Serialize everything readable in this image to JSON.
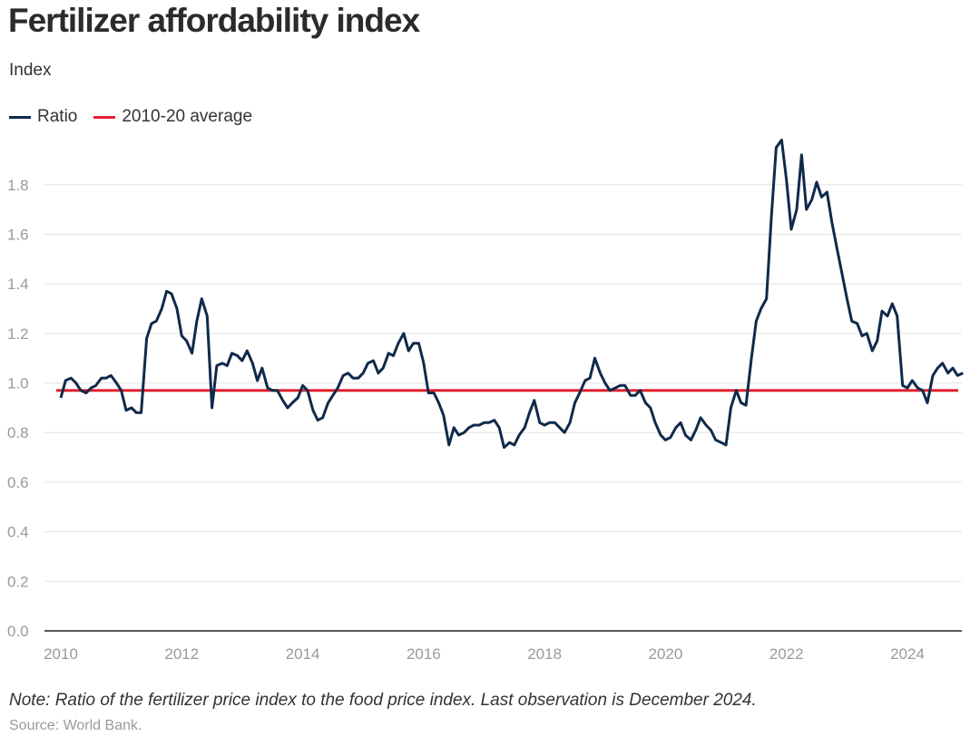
{
  "chart_data": {
    "type": "line",
    "title": "Fertilizer affordability index",
    "ylabel": "Index",
    "xlabel": "",
    "ylim": [
      0,
      2.0
    ],
    "xlim": [
      2010.0,
      2025.1
    ],
    "y_ticks": [
      "0.0",
      "0.2",
      "0.4",
      "0.6",
      "0.8",
      "1.0",
      "1.2",
      "1.4",
      "1.6",
      "1.8"
    ],
    "y_tick_values": [
      0.0,
      0.2,
      0.4,
      0.6,
      0.8,
      1.0,
      1.2,
      1.4,
      1.6,
      1.8
    ],
    "x_ticks": [
      "2010",
      "2012",
      "2014",
      "2016",
      "2018",
      "2020",
      "2022",
      "2024"
    ],
    "x_tick_values": [
      2010,
      2012,
      2014,
      2016,
      2018,
      2020,
      2022,
      2024
    ],
    "grid": true,
    "legend_position": "top-left",
    "series": [
      {
        "name": "Ratio",
        "color": "#0f2a4a",
        "x": [
          2010.0,
          2010.08,
          2010.17,
          2010.25,
          2010.33,
          2010.42,
          2010.5,
          2010.58,
          2010.67,
          2010.75,
          2010.83,
          2010.92,
          2011.0,
          2011.08,
          2011.17,
          2011.25,
          2011.33,
          2011.42,
          2011.5,
          2011.58,
          2011.67,
          2011.75,
          2011.83,
          2011.92,
          2012.0,
          2012.08,
          2012.17,
          2012.25,
          2012.33,
          2012.42,
          2012.5,
          2012.58,
          2012.67,
          2012.75,
          2012.83,
          2012.92,
          2013.0,
          2013.08,
          2013.17,
          2013.25,
          2013.33,
          2013.42,
          2013.5,
          2013.58,
          2013.67,
          2013.75,
          2013.83,
          2013.92,
          2014.0,
          2014.08,
          2014.17,
          2014.25,
          2014.33,
          2014.42,
          2014.5,
          2014.58,
          2014.67,
          2014.75,
          2014.83,
          2014.92,
          2015.0,
          2015.08,
          2015.17,
          2015.25,
          2015.33,
          2015.42,
          2015.5,
          2015.58,
          2015.67,
          2015.75,
          2015.83,
          2015.92,
          2016.0,
          2016.08,
          2016.17,
          2016.25,
          2016.33,
          2016.42,
          2016.5,
          2016.58,
          2016.67,
          2016.75,
          2016.83,
          2016.92,
          2017.0,
          2017.08,
          2017.17,
          2017.25,
          2017.33,
          2017.42,
          2017.5,
          2017.58,
          2017.67,
          2017.75,
          2017.83,
          2017.92,
          2018.0,
          2018.08,
          2018.17,
          2018.25,
          2018.33,
          2018.42,
          2018.5,
          2018.58,
          2018.67,
          2018.75,
          2018.83,
          2018.92,
          2019.0,
          2019.08,
          2019.17,
          2019.25,
          2019.33,
          2019.42,
          2019.5,
          2019.58,
          2019.67,
          2019.75,
          2019.83,
          2019.92,
          2020.0,
          2020.08,
          2020.17,
          2020.25,
          2020.33,
          2020.42,
          2020.5,
          2020.58,
          2020.67,
          2020.75,
          2020.83,
          2020.92,
          2021.0,
          2021.08,
          2021.17,
          2021.25,
          2021.33,
          2021.42,
          2021.5,
          2021.58,
          2021.67,
          2021.75,
          2021.83,
          2021.92,
          2022.0,
          2022.08,
          2022.17,
          2022.25,
          2022.33,
          2022.42,
          2022.5,
          2022.58,
          2022.67,
          2022.75,
          2022.83,
          2022.92,
          2023.0,
          2023.08,
          2023.17,
          2023.25,
          2023.33,
          2023.42,
          2023.5,
          2023.58,
          2023.67,
          2023.75,
          2023.83,
          2023.92,
          2024.0,
          2024.08,
          2024.17,
          2024.25,
          2024.33,
          2024.42,
          2024.5,
          2024.58,
          2024.67,
          2024.75,
          2024.83,
          2024.92
        ],
        "values": [
          0.94,
          1.01,
          1.02,
          1.0,
          0.97,
          0.96,
          0.98,
          0.99,
          1.02,
          1.02,
          1.03,
          1.0,
          0.97,
          0.89,
          0.9,
          0.88,
          0.88,
          1.18,
          1.24,
          1.25,
          1.3,
          1.37,
          1.36,
          1.3,
          1.19,
          1.17,
          1.12,
          1.25,
          1.34,
          1.27,
          0.9,
          1.07,
          1.08,
          1.07,
          1.12,
          1.11,
          1.09,
          1.13,
          1.08,
          1.01,
          1.06,
          0.98,
          0.97,
          0.97,
          0.93,
          0.9,
          0.92,
          0.94,
          0.99,
          0.97,
          0.89,
          0.85,
          0.86,
          0.92,
          0.95,
          0.98,
          1.03,
          1.04,
          1.02,
          1.02,
          1.04,
          1.08,
          1.09,
          1.04,
          1.06,
          1.12,
          1.11,
          1.16,
          1.2,
          1.13,
          1.16,
          1.16,
          1.08,
          0.96,
          0.96,
          0.92,
          0.87,
          0.75,
          0.82,
          0.79,
          0.8,
          0.82,
          0.83,
          0.83,
          0.84,
          0.84,
          0.85,
          0.82,
          0.74,
          0.76,
          0.75,
          0.79,
          0.82,
          0.88,
          0.93,
          0.84,
          0.83,
          0.84,
          0.84,
          0.82,
          0.8,
          0.84,
          0.92,
          0.96,
          1.01,
          1.02,
          1.1,
          1.04,
          1.0,
          0.97,
          0.98,
          0.99,
          0.99,
          0.95,
          0.95,
          0.97,
          0.92,
          0.9,
          0.84,
          0.79,
          0.77,
          0.78,
          0.82,
          0.84,
          0.79,
          0.77,
          0.81,
          0.86,
          0.83,
          0.81,
          0.77,
          0.76,
          0.75,
          0.9,
          0.97,
          0.92,
          0.91,
          1.1,
          1.25,
          1.3,
          1.34,
          1.67,
          1.95,
          1.98,
          1.82,
          1.62,
          1.7,
          1.92,
          1.7,
          1.74,
          1.81,
          1.75,
          1.77,
          1.65,
          1.55,
          1.44,
          1.34,
          1.25,
          1.24,
          1.19,
          1.2,
          1.13,
          1.17,
          1.29,
          1.27,
          1.32,
          1.27,
          0.99,
          0.98,
          1.01,
          0.98,
          0.97,
          0.92,
          1.03,
          1.06,
          1.08,
          1.04,
          1.06,
          1.03,
          1.04
        ]
      },
      {
        "name": "2010-20 average",
        "color": "#e0202f",
        "x": [
          2010.0,
          2025.0
        ],
        "values": [
          0.97,
          0.97
        ]
      }
    ]
  },
  "header": {
    "title": "Fertilizer affordability index",
    "subtitle": "Index"
  },
  "legend": {
    "items": [
      {
        "label": "Ratio",
        "color": "#0f2a4a"
      },
      {
        "label": "2010-20 average",
        "color": "#e0202f"
      }
    ]
  },
  "footer": {
    "note": "Note: Ratio of the fertilizer price index to the food price index. Last observation is December 2024.",
    "source": "Source: World Bank."
  }
}
